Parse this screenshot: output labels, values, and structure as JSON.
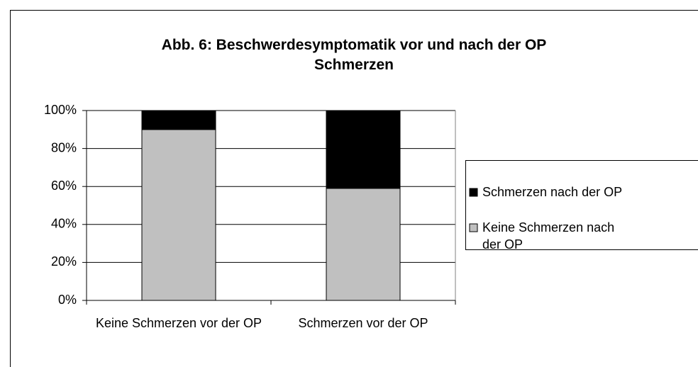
{
  "chart_data": {
    "type": "stacked_bar",
    "title": [
      "Abb. 6: Beschwerdesymptomatik vor und nach der OP",
      "Schmerzen"
    ],
    "categories": [
      "Keine Schmerzen vor der OP",
      "Schmerzen vor der OP"
    ],
    "series": [
      {
        "name": "Keine Schmerzen nach der OP",
        "color": "#c0c0c0",
        "values": [
          90,
          59
        ]
      },
      {
        "name": "Schmerzen nach der OP",
        "color": "#000000",
        "values": [
          10,
          41
        ]
      }
    ],
    "ylim": [
      0,
      100
    ],
    "yticks": [
      {
        "value": 0,
        "label": "0%"
      },
      {
        "value": 20,
        "label": "20%"
      },
      {
        "value": 40,
        "label": "40%"
      },
      {
        "value": 60,
        "label": "60%"
      },
      {
        "value": 80,
        "label": "80%"
      },
      {
        "value": 100,
        "label": "100%"
      }
    ],
    "grid": true,
    "legend": "right"
  }
}
